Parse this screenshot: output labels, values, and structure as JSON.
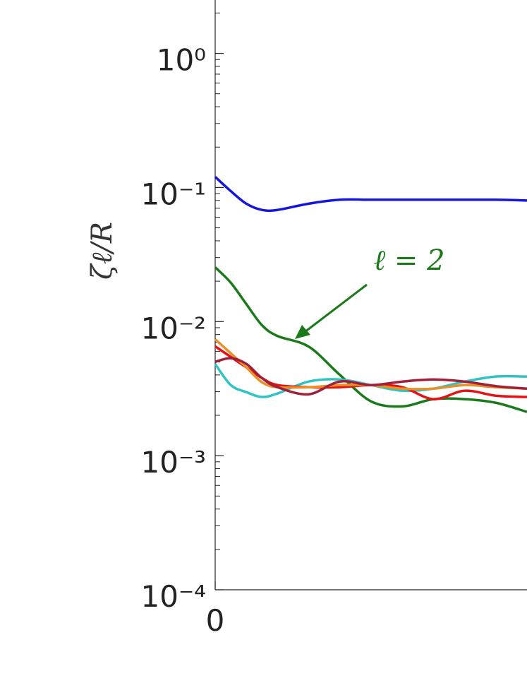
{
  "chart_data": {
    "type": "line",
    "ylabel": "ζℓ/R",
    "annotation": "ℓ = 2",
    "annotation_color": "#1a7a1a",
    "x": [
      0,
      0.05,
      0.1,
      0.15,
      0.2,
      0.3,
      0.4,
      0.5,
      0.6,
      0.7,
      0.8,
      0.9,
      1.0
    ],
    "xlim": [
      0,
      1
    ],
    "xticks": [
      0
    ],
    "ylim": [
      0.0001,
      2.5
    ],
    "log_y": true,
    "minor_ticks": true,
    "yticks": [
      {
        "value": 0.0001,
        "label": "10⁻⁴"
      },
      {
        "value": 0.001,
        "label": "10⁻³"
      },
      {
        "value": 0.01,
        "label": "10⁻²"
      },
      {
        "value": 0.1,
        "label": "10⁻¹"
      },
      {
        "value": 1,
        "label": "10⁰"
      }
    ],
    "series": [
      {
        "color": "#1515e0",
        "values": [
          0.12,
          0.094,
          0.0757,
          0.068,
          0.068,
          0.0757,
          0.081,
          0.081,
          0.081,
          0.081,
          0.081,
          0.081,
          0.08
        ]
      },
      {
        "color": "#1a7a1a",
        "values": [
          0.0254,
          0.0195,
          0.0135,
          0.0094,
          0.0078,
          0.0065,
          0.004,
          0.00254,
          0.00233,
          0.00264,
          0.00264,
          0.00248,
          0.00212
        ]
      },
      {
        "color": "#2ec4c4",
        "values": [
          0.00483,
          0.00336,
          0.00298,
          0.00274,
          0.00291,
          0.00357,
          0.0037,
          0.00336,
          0.00305,
          0.00316,
          0.00357,
          0.00389,
          0.00389
        ]
      },
      {
        "color": "#e81010",
        "values": [
          0.00654,
          0.00545,
          0.00455,
          0.00379,
          0.00336,
          0.00324,
          0.00324,
          0.00336,
          0.00324,
          0.00264,
          0.00305,
          0.0028,
          0.00274
        ]
      },
      {
        "color": "#e8902a",
        "values": [
          0.00738,
          0.0058,
          0.00455,
          0.00353,
          0.00324,
          0.00324,
          0.00336,
          0.00336,
          0.00316,
          0.00316,
          0.00336,
          0.00324,
          0.00316
        ]
      },
      {
        "color": "#a0203a",
        "values": [
          0.00501,
          0.00533,
          0.00483,
          0.00379,
          0.00324,
          0.00287,
          0.00357,
          0.00336,
          0.00357,
          0.0037,
          0.00357,
          0.0033,
          0.00316
        ]
      }
    ]
  }
}
